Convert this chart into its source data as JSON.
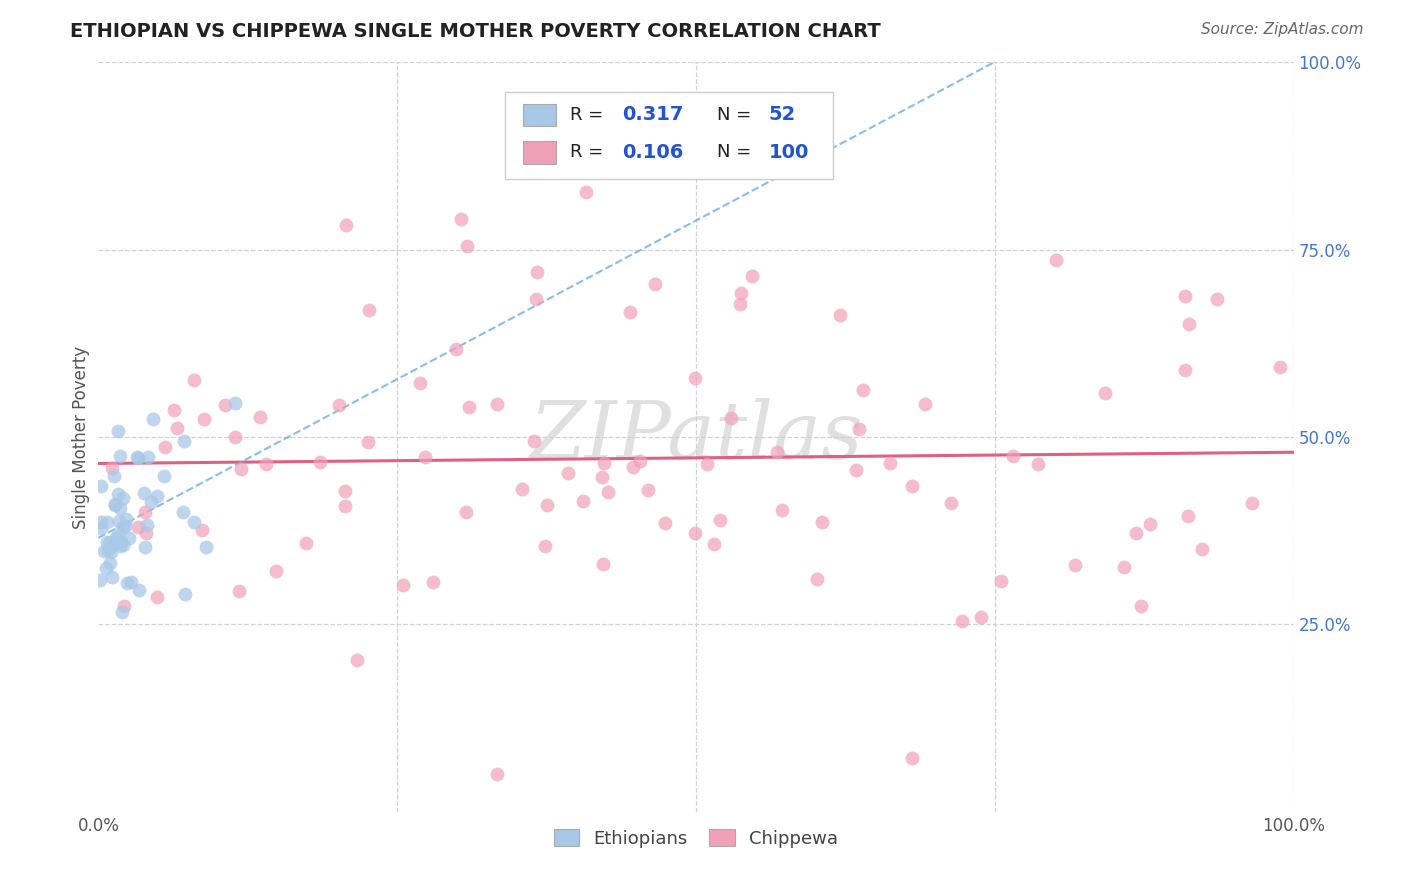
{
  "title": "ETHIOPIAN VS CHIPPEWA SINGLE MOTHER POVERTY CORRELATION CHART",
  "source": "Source: ZipAtlas.com",
  "ylabel": "Single Mother Poverty",
  "xlim": [
    0,
    1
  ],
  "ylim": [
    0,
    1
  ],
  "ethiopian_R": 0.317,
  "ethiopian_N": 52,
  "chippewa_R": 0.106,
  "chippewa_N": 100,
  "ethiopian_color": "#a8c8e8",
  "chippewa_color": "#f0a0b8",
  "ethiopian_line_color": "#6aaee0",
  "chippewa_line_color": "#e06080",
  "watermark": "ZIPatlas",
  "background_color": "#ffffff",
  "grid_color": "#d0d0e0",
  "legend_text_color": "#2255cc",
  "legend_label_color": "#222222",
  "right_tick_color": "#4477cc",
  "title_color": "#222222",
  "source_color": "#666666"
}
